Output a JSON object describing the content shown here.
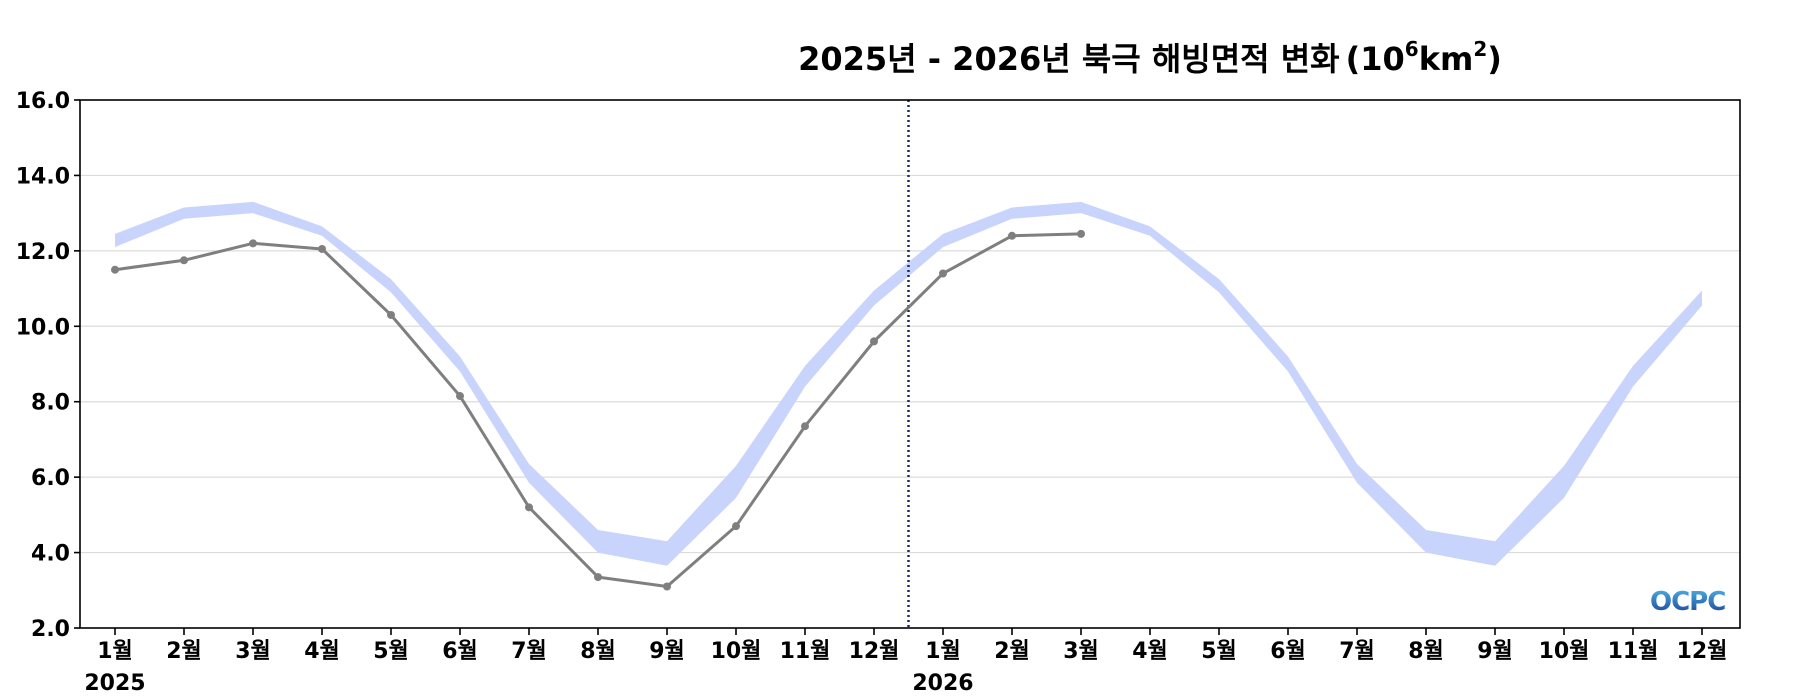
{
  "chart_data": {
    "type": "line",
    "title": "2025년 - 2026년 북극 해빙면적 변화",
    "title_unit_prefix": "(10",
    "title_unit_exp": "6",
    "title_unit_mid": "km",
    "title_unit_exp2": "2",
    "title_unit_suffix": ")",
    "x_ticks": [
      "1월",
      "2월",
      "3월",
      "4월",
      "5월",
      "6월",
      "7월",
      "8월",
      "9월",
      "10월",
      "11월",
      "12월",
      "1월",
      "2월",
      "3월",
      "4월",
      "5월",
      "6월",
      "7월",
      "8월",
      "9월",
      "10월",
      "11월",
      "12월"
    ],
    "year_labels": [
      {
        "label": "2025",
        "index": 0
      },
      {
        "label": "2026",
        "index": 12
      }
    ],
    "ylim": [
      2.0,
      16.0
    ],
    "y_ticks": [
      2.0,
      4.0,
      6.0,
      8.0,
      10.0,
      12.0,
      14.0,
      16.0
    ],
    "grid": true,
    "divider_between_index": 11.5,
    "band": {
      "lower": [
        12.1,
        12.85,
        13.0,
        12.4,
        10.9,
        8.8,
        5.85,
        4.0,
        3.65,
        5.45,
        8.4,
        10.55,
        12.1,
        12.85,
        13.0,
        12.4,
        10.9,
        8.8,
        5.85,
        4.0,
        3.65,
        5.45,
        8.4,
        10.55
      ],
      "upper": [
        12.45,
        13.15,
        13.3,
        12.65,
        11.25,
        9.2,
        6.35,
        4.6,
        4.3,
        6.3,
        8.95,
        10.95,
        12.45,
        13.15,
        13.3,
        12.65,
        11.25,
        9.2,
        6.35,
        4.6,
        4.3,
        6.3,
        8.95,
        10.95
      ],
      "color": "#c8d4fb"
    },
    "series": [
      {
        "values": [
          11.5,
          11.75,
          12.2,
          12.05,
          10.3,
          8.15,
          5.2,
          3.35,
          3.1,
          4.7,
          7.35,
          9.6,
          11.4,
          12.4,
          12.45
        ],
        "color": "#7f7f7f"
      }
    ],
    "divider_color": "#1c2a66",
    "logo_text": "OCPC"
  }
}
